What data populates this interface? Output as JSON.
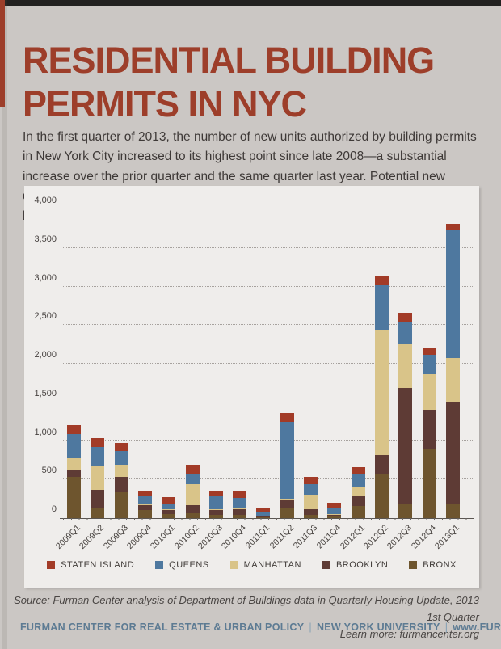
{
  "page": {
    "title_line1": "RESIDENTIAL BUILDING",
    "title_line2": "PERMITS IN NYC",
    "intro": "In the first quarter of 2013, the number of new units authorized by building permits in New York City increased to its highest point since late 2008—a substantial increase over the prior quarter and the same quarter last year. Potential new development in Queens and Brooklyn accounted for most of the units authorized by new building permits.",
    "source_line1": "Source: Furman Center analysis of Department of Buildings data in Quarterly Housing Update, 2013 1st Quarter",
    "source_line2": "Learn more: furmancenter.org",
    "footer_parts": [
      "FURMAN CENTER FOR REAL ESTATE & URBAN POLICY",
      "NEW YORK UNIVERSITY",
      "www.FURMANCENTER.org"
    ],
    "footer_separator": "|"
  },
  "colors": {
    "page_background": "#cbc7c4",
    "panel_background": "#efedeb",
    "title_red": "#9d3e2a",
    "body_text": "#3e3937",
    "footer_blue": "#5d7b93",
    "top_bar": "#232120"
  },
  "chart_data": {
    "type": "bar",
    "stacked": true,
    "title": "",
    "xlabel": "",
    "ylabel": "",
    "ylim": [
      0,
      4000
    ],
    "yticks": [
      0,
      500,
      1000,
      1500,
      2000,
      2500,
      3000,
      3500,
      4000
    ],
    "ytick_labels": [
      "0",
      "500",
      "1,000",
      "1,500",
      "2,000",
      "2,500",
      "3,000",
      "3,500",
      "4,000"
    ],
    "grid": "horizontal-dotted",
    "legend_position": "bottom",
    "legend_order": [
      "STATEN ISLAND",
      "QUEENS",
      "MANHATTAN",
      "BROOKLYN",
      "BRONX"
    ],
    "categories": [
      "2009Q1",
      "2009Q2",
      "2009Q3",
      "2009Q4",
      "2010Q1",
      "2010Q2",
      "2010Q3",
      "2010Q4",
      "2011Q1",
      "2011Q2",
      "2011Q3",
      "2011Q4",
      "2012Q1",
      "2012Q2",
      "2012Q3",
      "2012Q4",
      "2013Q1"
    ],
    "series_order": "bottom-to-top",
    "series": [
      {
        "name": "BRONX",
        "color": "#6e552e",
        "values": [
          530,
          135,
          340,
          100,
          50,
          65,
          40,
          40,
          15,
          135,
          40,
          20,
          160,
          565,
          190,
          900,
          190
        ]
      },
      {
        "name": "BROOKLYN",
        "color": "#5e3b35",
        "values": [
          90,
          235,
          190,
          65,
          55,
          100,
          70,
          75,
          15,
          95,
          75,
          30,
          120,
          250,
          1495,
          505,
          1310
        ]
      },
      {
        "name": "MANHATTAN",
        "color": "#d9c489",
        "values": [
          150,
          305,
          160,
          15,
          10,
          270,
          10,
          10,
          5,
          10,
          175,
          5,
          115,
          1625,
          565,
          460,
          570
        ]
      },
      {
        "name": "QUEENS",
        "color": "#4e789f",
        "values": [
          320,
          250,
          175,
          100,
          70,
          140,
          165,
          140,
          35,
          1010,
          145,
          70,
          185,
          575,
          280,
          250,
          1665
        ]
      },
      {
        "name": "STATEN ISLAND",
        "color": "#a23b27",
        "values": [
          110,
          115,
          105,
          80,
          90,
          115,
          75,
          85,
          65,
          110,
          100,
          75,
          85,
          125,
          125,
          95,
          80
        ]
      }
    ],
    "totals": [
      1200,
      1040,
      970,
      360,
      275,
      690,
      360,
      350,
      135,
      1360,
      535,
      200,
      665,
      3140,
      2655,
      2210,
      3815
    ]
  }
}
